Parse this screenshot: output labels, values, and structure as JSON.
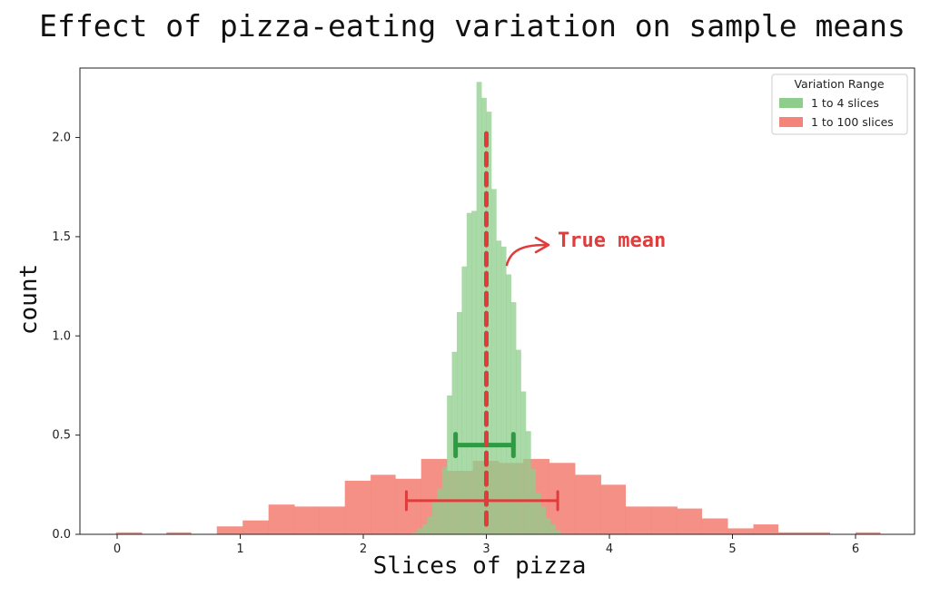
{
  "chart_data": {
    "type": "bar",
    "title": "Effect of pizza-eating variation on sample means",
    "xlabel": "Slices of pizza",
    "ylabel": "count",
    "xlim": [
      -0.3,
      6.5
    ],
    "ylim": [
      0,
      2.35
    ],
    "x_ticks": [
      0,
      1,
      2,
      3,
      4,
      5,
      6
    ],
    "y_ticks": [
      0.0,
      0.5,
      1.0,
      1.5,
      2.0
    ],
    "grid": false,
    "legend": {
      "title": "Variation Range",
      "placement": "top-right"
    },
    "series": [
      {
        "name": "1 to 100 slices",
        "color": "#f4847a",
        "bins": [
          [
            -0.01,
            0.2,
            0.01
          ],
          [
            0.2,
            0.4,
            0.0
          ],
          [
            0.4,
            0.6,
            0.01
          ],
          [
            0.6,
            0.81,
            0.0
          ],
          [
            0.81,
            1.02,
            0.04
          ],
          [
            1.02,
            1.23,
            0.07
          ],
          [
            1.23,
            1.44,
            0.15
          ],
          [
            1.44,
            1.64,
            0.14
          ],
          [
            1.64,
            1.85,
            0.14
          ],
          [
            1.85,
            2.06,
            0.27
          ],
          [
            2.06,
            2.26,
            0.3
          ],
          [
            2.26,
            2.47,
            0.28
          ],
          [
            2.47,
            2.68,
            0.38
          ],
          [
            2.68,
            2.89,
            0.32
          ],
          [
            2.89,
            3.1,
            0.37
          ],
          [
            3.1,
            3.3,
            0.36
          ],
          [
            3.3,
            3.51,
            0.38
          ],
          [
            3.51,
            3.72,
            0.36
          ],
          [
            3.72,
            3.93,
            0.3
          ],
          [
            3.93,
            4.13,
            0.25
          ],
          [
            4.13,
            4.34,
            0.14
          ],
          [
            4.34,
            4.55,
            0.14
          ],
          [
            4.55,
            4.75,
            0.13
          ],
          [
            4.75,
            4.96,
            0.08
          ],
          [
            4.96,
            5.17,
            0.03
          ],
          [
            5.17,
            5.37,
            0.05
          ],
          [
            5.37,
            5.58,
            0.01
          ],
          [
            5.58,
            5.79,
            0.01
          ],
          [
            5.79,
            6.0,
            0.0
          ],
          [
            6.0,
            6.2,
            0.01
          ]
        ]
      },
      {
        "name": "1 to 4 slices",
        "color": "#8fcd8c",
        "bins": [
          [
            2.4,
            2.44,
            0.01
          ],
          [
            2.44,
            2.48,
            0.03
          ],
          [
            2.48,
            2.52,
            0.05
          ],
          [
            2.52,
            2.56,
            0.09
          ],
          [
            2.56,
            2.6,
            0.16
          ],
          [
            2.6,
            2.64,
            0.23
          ],
          [
            2.64,
            2.68,
            0.34
          ],
          [
            2.68,
            2.72,
            0.7
          ],
          [
            2.72,
            2.76,
            0.92
          ],
          [
            2.76,
            2.8,
            1.12
          ],
          [
            2.8,
            2.84,
            1.35
          ],
          [
            2.84,
            2.88,
            1.62
          ],
          [
            2.88,
            2.92,
            1.63
          ],
          [
            2.92,
            2.96,
            2.28
          ],
          [
            2.96,
            3.0,
            2.2
          ],
          [
            3.0,
            3.04,
            2.13
          ],
          [
            3.04,
            3.08,
            1.74
          ],
          [
            3.08,
            3.12,
            1.48
          ],
          [
            3.12,
            3.16,
            1.45
          ],
          [
            3.16,
            3.2,
            1.31
          ],
          [
            3.2,
            3.24,
            1.17
          ],
          [
            3.24,
            3.28,
            0.93
          ],
          [
            3.28,
            3.32,
            0.72
          ],
          [
            3.32,
            3.36,
            0.52
          ],
          [
            3.36,
            3.4,
            0.33
          ],
          [
            3.4,
            3.44,
            0.21
          ],
          [
            3.44,
            3.48,
            0.14
          ],
          [
            3.48,
            3.52,
            0.08
          ],
          [
            3.52,
            3.56,
            0.05
          ],
          [
            3.56,
            3.6,
            0.02
          ]
        ]
      }
    ],
    "annotations": [
      {
        "text": "True mean",
        "x": 3.0,
        "color": "#e03c3c"
      }
    ],
    "spread_markers": [
      {
        "series": "1 to 4 slices",
        "x1": 2.75,
        "x2": 3.22,
        "y": 0.45,
        "color": "#2e9a42"
      },
      {
        "series": "1 to 100 slices",
        "x1": 2.35,
        "x2": 3.58,
        "y": 0.17,
        "color": "#e03c3c"
      }
    ]
  }
}
